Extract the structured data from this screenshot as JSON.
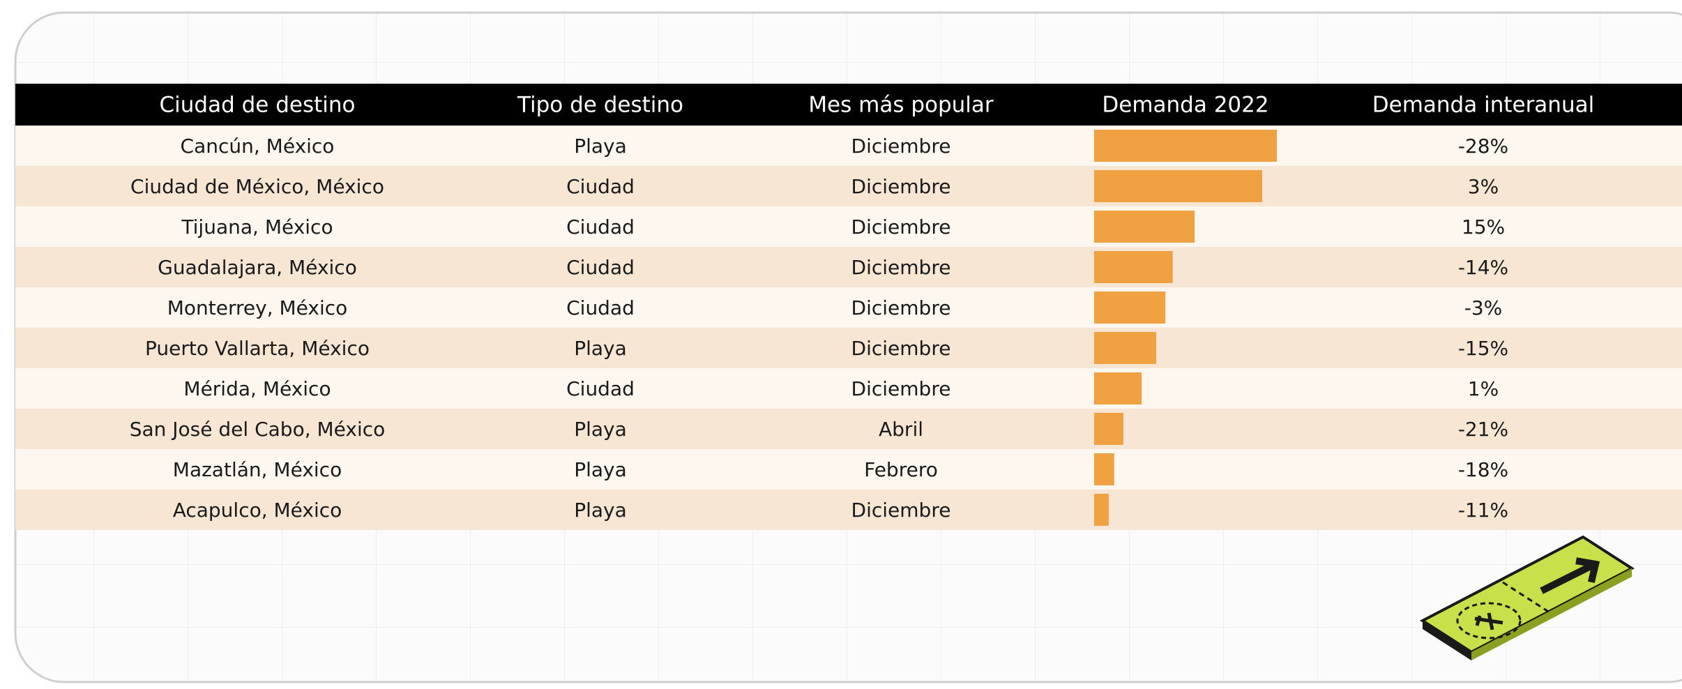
{
  "table": {
    "header": [
      "Ciudad de destino",
      "Tipo de destino",
      "Mes más popular",
      "Demanda 2022",
      "Demanda interanual"
    ],
    "rows": [
      [
        "Cancún, México",
        "Playa",
        "Diciembre",
        100,
        "-28%"
      ],
      [
        "Ciudad de México, México",
        "Ciudad",
        "Diciembre",
        92,
        "3%"
      ],
      [
        "Tijuana, México",
        "Ciudad",
        "Diciembre",
        55,
        "15%"
      ],
      [
        "Guadalajara, México",
        "Ciudad",
        "Diciembre",
        43,
        "-14%"
      ],
      [
        "Monterrey, México",
        "Ciudad",
        "Diciembre",
        39,
        "-3%"
      ],
      [
        "Puerto Vallarta, México",
        "Playa",
        "Diciembre",
        34,
        "-15%"
      ],
      [
        "Mérida, México",
        "Ciudad",
        "Diciembre",
        26,
        "1%"
      ],
      [
        "San José del Cabo, México",
        "Playa",
        "Abril",
        16,
        "-21%"
      ],
      [
        "Mazatlán, México",
        "Playa",
        "Febrero",
        11,
        "-18%"
      ],
      [
        "Acapulco, México",
        "Playa",
        "Diciembre",
        8,
        "-11%"
      ]
    ]
  }
}
